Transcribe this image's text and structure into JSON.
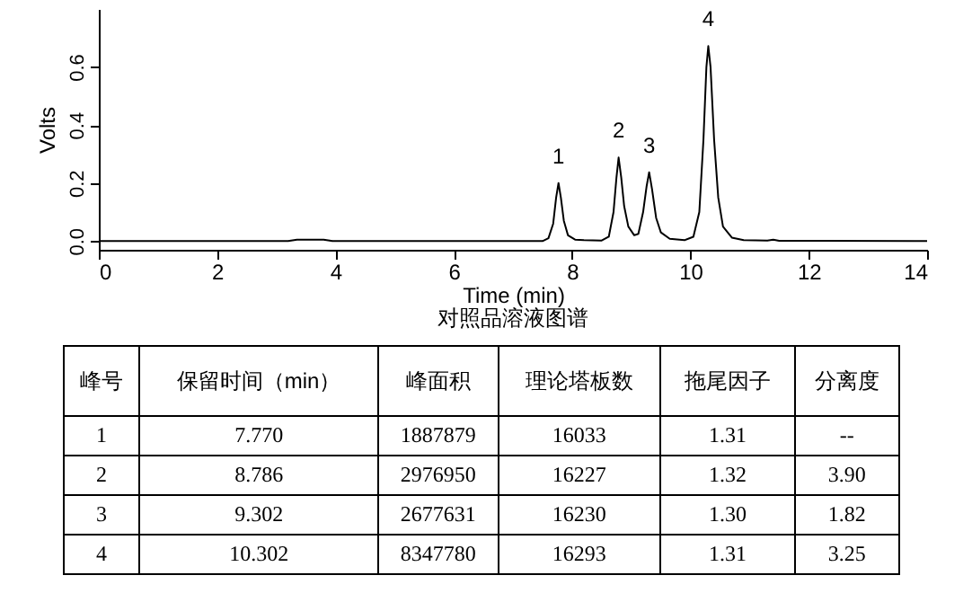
{
  "chart_data": {
    "type": "line",
    "title": "对照品溶液图谱",
    "xlabel": "Time (min)",
    "ylabel": "Volts",
    "x": [
      0,
      3.2,
      3.35,
      3.8,
      3.95,
      7.5,
      7.6,
      7.68,
      7.73,
      7.77,
      7.81,
      7.86,
      7.93,
      8.05,
      8.2,
      8.5,
      8.62,
      8.7,
      8.75,
      8.786,
      8.83,
      8.88,
      8.95,
      9.05,
      9.12,
      9.2,
      9.26,
      9.302,
      9.35,
      9.42,
      9.5,
      9.65,
      9.9,
      10.05,
      10.15,
      10.22,
      10.27,
      10.302,
      10.34,
      10.4,
      10.47,
      10.55,
      10.7,
      10.9,
      11.3,
      11.4,
      11.5,
      12.2,
      14
    ],
    "series": [
      {
        "color": "#000000",
        "values": [
          0,
          0,
          0.005,
          0.005,
          0,
          0,
          0.01,
          0.06,
          0.15,
          0.2,
          0.15,
          0.07,
          0.02,
          0.005,
          0.003,
          0.002,
          0.015,
          0.1,
          0.22,
          0.288,
          0.22,
          0.12,
          0.05,
          0.02,
          0.025,
          0.1,
          0.19,
          0.237,
          0.18,
          0.08,
          0.03,
          0.008,
          0.003,
          0.015,
          0.1,
          0.35,
          0.6,
          0.672,
          0.6,
          0.35,
          0.15,
          0.05,
          0.012,
          0.003,
          0.002,
          0.005,
          0.001,
          0.001,
          0
        ]
      }
    ],
    "xlim": [
      0,
      14
    ],
    "xticks": [
      0,
      2,
      4,
      6,
      8,
      10,
      12,
      14
    ],
    "ylim": [
      -0.03,
      0.8
    ],
    "yticks": [
      {
        "value": 0,
        "label": "0.0"
      },
      {
        "value": 0.2,
        "label": "0.2"
      },
      {
        "value": 0.4,
        "label": "0.4"
      },
      {
        "value": 0.6,
        "label": "0.6"
      }
    ],
    "grid": false,
    "marker": "none",
    "line_style": "solid",
    "annotations": [
      {
        "text": "1",
        "x": 7.77,
        "y": 0.2
      },
      {
        "text": "2",
        "x": 8.786,
        "y": 0.288
      },
      {
        "text": "3",
        "x": 9.302,
        "y": 0.237
      },
      {
        "text": "4",
        "x": 10.302,
        "y": 0.672
      },
      "峰号",
      "保留时间（min）",
      "峰面积",
      "理论塔板数",
      "拖尾因子",
      "分离度",
      "1",
      "7.770",
      "1887879",
      "16033",
      "1.31",
      "--",
      "2",
      "8.786",
      "2976950",
      "16227",
      "1.32",
      "3.90",
      "3",
      "9.302",
      "2677631",
      "16230",
      "1.30",
      "1.82",
      "4",
      "10.302",
      "8347780",
      "16293",
      "1.31",
      "3.25"
    ]
  }
}
